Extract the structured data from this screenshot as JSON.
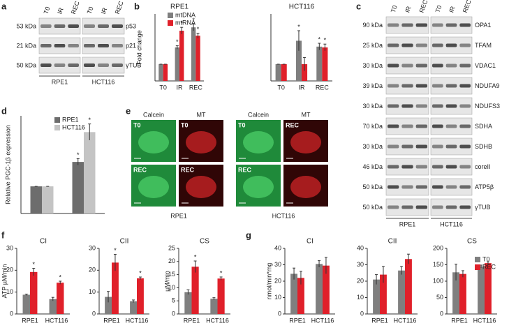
{
  "panel_labels": [
    "a",
    "b",
    "c",
    "d",
    "e",
    "f",
    "g"
  ],
  "blot_a": {
    "lanes": [
      "T0",
      "IR",
      "REC",
      "T0",
      "IR",
      "REC"
    ],
    "markers": [
      "53 kDa",
      "21 kDa",
      "50 kDa"
    ],
    "proteins": [
      "p53",
      "p21",
      "γTUB"
    ],
    "cell_lines": [
      "RPE1",
      "HCT116"
    ]
  },
  "blot_c": {
    "lanes": [
      "T0",
      "IR",
      "REC",
      "T0",
      "IR",
      "REC"
    ],
    "markers": [
      "90 kDa",
      "25 kDa",
      "30 kDa",
      "39 kDa",
      "30 kDa",
      "70 kDa",
      "30 kDa",
      "46 kDa",
      "50 kDa",
      "50 kDa"
    ],
    "proteins": [
      "OPA1",
      "TFAM",
      "VDAC1",
      "NDUFA9",
      "NDUFS3",
      "SDHA",
      "SDHB",
      "coreII",
      "ATP5β",
      "γTUB"
    ],
    "cell_lines": [
      "RPE1",
      "HCT116"
    ]
  },
  "microscopy_e": {
    "headers": [
      "Calcein",
      "MT",
      "Calcein",
      "MT"
    ],
    "row_labels": [
      "T0",
      "T0",
      "T0",
      "REC",
      "REC",
      "REC",
      "REC"
    ],
    "cell_lines": [
      "RPE1",
      "HCT116"
    ]
  },
  "chart_data": [
    {
      "type": "bar",
      "title": "RPE1",
      "ylabel": "Fold change",
      "categories": [
        "T0",
        "IR",
        "REC"
      ],
      "ylim": [
        0,
        4
      ],
      "legend": true,
      "series": [
        {
          "name": "mtDNA",
          "color": "#7f7f7f",
          "values": [
            1,
            2.0,
            3.2
          ],
          "errors": [
            0,
            0.1,
            0.2
          ],
          "stars": [
            null,
            "*",
            "*"
          ]
        },
        {
          "name": "mtRNA",
          "color": "#e0202a",
          "values": [
            1,
            3.0,
            2.7
          ],
          "errors": [
            0,
            0.2,
            0.15
          ],
          "stars": [
            null,
            "*",
            "*"
          ]
        }
      ]
    },
    {
      "type": "bar",
      "title": "HCT116",
      "categories": [
        "T0",
        "IR",
        "REC"
      ],
      "ylim": [
        0,
        4
      ],
      "legend": false,
      "series": [
        {
          "name": "mtDNA",
          "color": "#7f7f7f",
          "values": [
            1,
            2.4,
            2.05
          ],
          "errors": [
            0,
            0.6,
            0.2
          ],
          "stars": [
            null,
            "*",
            "*"
          ]
        },
        {
          "name": "mtRNA",
          "color": "#e0202a",
          "values": [
            1,
            1.0,
            2.0
          ],
          "errors": [
            0,
            0.4,
            0.2
          ],
          "stars": [
            null,
            null,
            "*"
          ]
        }
      ]
    },
    {
      "type": "bar",
      "ylabel": "Relative PGC-1β expression",
      "categories": [
        null,
        null
      ],
      "ylim": [
        0,
        3.6
      ],
      "legend": true,
      "series": [
        {
          "name": "RPE1",
          "color": "#6d6d6d",
          "values": [
            1,
            1.9
          ],
          "errors": [
            0,
            0.12
          ],
          "stars": [
            null,
            "*"
          ]
        },
        {
          "name": "HCT116",
          "color": "#c4c4c4",
          "values": [
            1,
            3.0
          ],
          "errors": [
            0,
            0.3
          ],
          "stars": [
            null,
            "*"
          ]
        }
      ]
    },
    {
      "type": "bar",
      "title": "CI",
      "ylabel": "ATP µM/min",
      "categories": [
        "RPE1",
        "HCT116"
      ],
      "ylim": [
        0,
        30
      ],
      "yticks": [
        0,
        10,
        20,
        30
      ],
      "legend": false,
      "series": [
        {
          "name": "T0",
          "color": "#7f7f7f",
          "values": [
            8.8,
            6.8
          ],
          "errors": [
            0.3,
            0.8
          ],
          "stars": [
            null,
            null
          ]
        },
        {
          "name": "REC",
          "color": "#e0202a",
          "values": [
            19.2,
            14.3
          ],
          "errors": [
            1.7,
            0.7
          ],
          "stars": [
            "*",
            "*"
          ]
        }
      ]
    },
    {
      "type": "bar",
      "title": "CII",
      "categories": [
        "RPE1",
        "HCT116"
      ],
      "ylim": [
        0,
        30
      ],
      "yticks": [
        0,
        10,
        20,
        30
      ],
      "legend": false,
      "series": [
        {
          "name": "T0",
          "color": "#7f7f7f",
          "values": [
            7.8,
            5.8
          ],
          "errors": [
            2.5,
            0.6
          ],
          "stars": [
            null,
            null
          ]
        },
        {
          "name": "REC",
          "color": "#e0202a",
          "values": [
            23.5,
            16.3
          ],
          "errors": [
            3.8,
            0.6
          ],
          "stars": [
            "*",
            "*"
          ]
        }
      ]
    },
    {
      "type": "bar",
      "title": "CS",
      "ylabel": "µM/min",
      "categories": [
        "RPE1",
        "HCT116"
      ],
      "ylim": [
        0,
        25
      ],
      "yticks": [
        0,
        5,
        10,
        15,
        20,
        25
      ],
      "legend": false,
      "series": [
        {
          "name": "T0",
          "color": "#7f7f7f",
          "values": [
            8.3,
            5.8
          ],
          "errors": [
            0.9,
            0.4
          ],
          "stars": [
            null,
            null
          ]
        },
        {
          "name": "REC",
          "color": "#e0202a",
          "values": [
            18.0,
            13.5
          ],
          "errors": [
            2.2,
            0.6
          ],
          "stars": [
            "*",
            "*"
          ]
        }
      ]
    },
    {
      "type": "bar",
      "title": "CI",
      "ylabel": "nmol/min*mg",
      "categories": [
        "RPE1",
        "HCT116"
      ],
      "ylim": [
        0,
        40
      ],
      "yticks": [
        0,
        10,
        20,
        30,
        40
      ],
      "legend": false,
      "series": [
        {
          "name": "T0",
          "color": "#7f7f7f",
          "values": [
            24.5,
            30.5
          ],
          "errors": [
            3.5,
            2
          ],
          "stars": [
            null,
            null
          ]
        },
        {
          "name": "REC",
          "color": "#e0202a",
          "values": [
            22,
            29.5
          ],
          "errors": [
            4,
            5
          ],
          "stars": [
            null,
            null
          ]
        }
      ]
    },
    {
      "type": "bar",
      "title": "CII",
      "categories": [
        "RPE1",
        "HCT116"
      ],
      "ylim": [
        0,
        40
      ],
      "yticks": [
        0,
        10,
        20,
        30,
        40
      ],
      "legend": false,
      "series": [
        {
          "name": "T0",
          "color": "#7f7f7f",
          "values": [
            21,
            26.5
          ],
          "errors": [
            3,
            2.5
          ],
          "stars": [
            null,
            null
          ]
        },
        {
          "name": "REC",
          "color": "#e0202a",
          "values": [
            24,
            33.5
          ],
          "errors": [
            5,
            3
          ],
          "stars": [
            null,
            null
          ]
        }
      ]
    },
    {
      "type": "bar",
      "title": "CS",
      "categories": [
        "RPE1",
        "HCT116"
      ],
      "ylim": [
        0,
        200
      ],
      "yticks": [
        0,
        50,
        100,
        150,
        200
      ],
      "legend": true,
      "series": [
        {
          "name": "T0",
          "color": "#7f7f7f",
          "values": [
            127,
            145
          ],
          "errors": [
            25,
            4
          ],
          "stars": [
            null,
            null
          ]
        },
        {
          "name": "REC",
          "color": "#e0202a",
          "values": [
            122,
            155
          ],
          "errors": [
            10,
            4
          ],
          "stars": [
            null,
            null
          ]
        }
      ]
    }
  ]
}
